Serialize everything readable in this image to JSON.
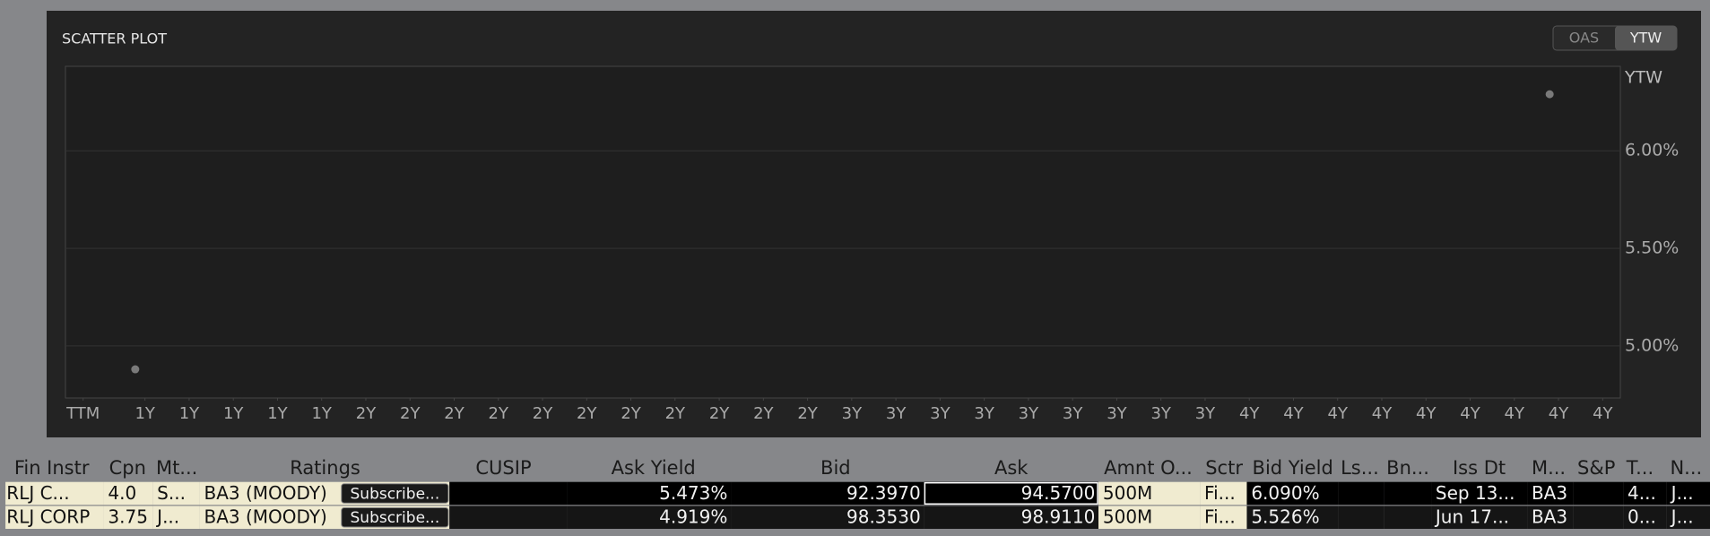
{
  "chart_data": {
    "type": "scatter",
    "title": "SCATTER PLOT",
    "y_label": "YTW",
    "series": [
      {
        "name": "RLJ",
        "color": "#7a7a7a",
        "x": [
          1.58,
          33.6
        ],
        "values": [
          4.88,
          6.29
        ]
      }
    ],
    "xlim": [
      0,
      35.2
    ],
    "ylim": [
      4.733,
      6.433
    ],
    "xticks": [
      {
        "value": 0.4,
        "label": "TTM"
      },
      {
        "value": 1.8,
        "label": "1Y"
      },
      {
        "value": 2.8,
        "label": "1Y"
      },
      {
        "value": 3.8,
        "label": "1Y"
      },
      {
        "value": 4.8,
        "label": "1Y"
      },
      {
        "value": 5.8,
        "label": "1Y"
      },
      {
        "value": 6.8,
        "label": "2Y"
      },
      {
        "value": 7.8,
        "label": "2Y"
      },
      {
        "value": 8.8,
        "label": "2Y"
      },
      {
        "value": 9.8,
        "label": "2Y"
      },
      {
        "value": 10.8,
        "label": "2Y"
      },
      {
        "value": 11.8,
        "label": "2Y"
      },
      {
        "value": 12.8,
        "label": "2Y"
      },
      {
        "value": 13.8,
        "label": "2Y"
      },
      {
        "value": 14.8,
        "label": "2Y"
      },
      {
        "value": 15.8,
        "label": "2Y"
      },
      {
        "value": 16.8,
        "label": "2Y"
      },
      {
        "value": 17.8,
        "label": "3Y"
      },
      {
        "value": 18.8,
        "label": "3Y"
      },
      {
        "value": 19.8,
        "label": "3Y"
      },
      {
        "value": 20.8,
        "label": "3Y"
      },
      {
        "value": 21.8,
        "label": "3Y"
      },
      {
        "value": 22.8,
        "label": "3Y"
      },
      {
        "value": 23.8,
        "label": "3Y"
      },
      {
        "value": 24.8,
        "label": "3Y"
      },
      {
        "value": 25.8,
        "label": "3Y"
      },
      {
        "value": 26.8,
        "label": "4Y"
      },
      {
        "value": 27.8,
        "label": "4Y"
      },
      {
        "value": 28.8,
        "label": "4Y"
      },
      {
        "value": 29.8,
        "label": "4Y"
      },
      {
        "value": 30.8,
        "label": "4Y"
      },
      {
        "value": 31.8,
        "label": "4Y"
      },
      {
        "value": 32.8,
        "label": "4Y"
      },
      {
        "value": 33.8,
        "label": "4Y"
      },
      {
        "value": 34.8,
        "label": "4Y"
      }
    ],
    "yticks": [
      {
        "value": 5,
        "label": "5.00%"
      },
      {
        "value": 5.5,
        "label": "5.50%"
      },
      {
        "value": 6,
        "label": "6.00%"
      }
    ],
    "grid": true
  },
  "toggle": {
    "options": [
      "OAS",
      "YTW"
    ],
    "selected": "YTW"
  },
  "table": {
    "headers": [
      "Fin Instr",
      "Cpn",
      "Mt...",
      "Ratings",
      "CUSIP",
      "Ask Yield",
      "Bid",
      "Ask",
      "Amnt O...",
      "Sctr",
      "Bid Yield",
      "Ls...",
      "Bn...",
      "Iss Dt",
      "M...",
      "S&P",
      "T...",
      "N..."
    ],
    "rows": [
      {
        "cells": [
          "RLJ C...",
          "4.0",
          "S...",
          "BA3 (MOODY)",
          null,
          "5.473%",
          "92.3970",
          "94.5700",
          "500M",
          "Fi...",
          "6.090%",
          null,
          null,
          "Sep 13...",
          "BA3",
          null,
          "4...",
          "J..."
        ],
        "button": "Subscribe..."
      },
      {
        "cells": [
          "RLJ CORP",
          "3.75",
          "J...",
          "BA3 (MOODY)",
          null,
          "4.919%",
          "98.3530",
          "98.9110",
          "500M",
          "Fi...",
          "5.526%",
          null,
          null,
          "Jun 17...",
          "BA3",
          null,
          "0...",
          "J..."
        ],
        "button": "Subscribe..."
      }
    ]
  }
}
